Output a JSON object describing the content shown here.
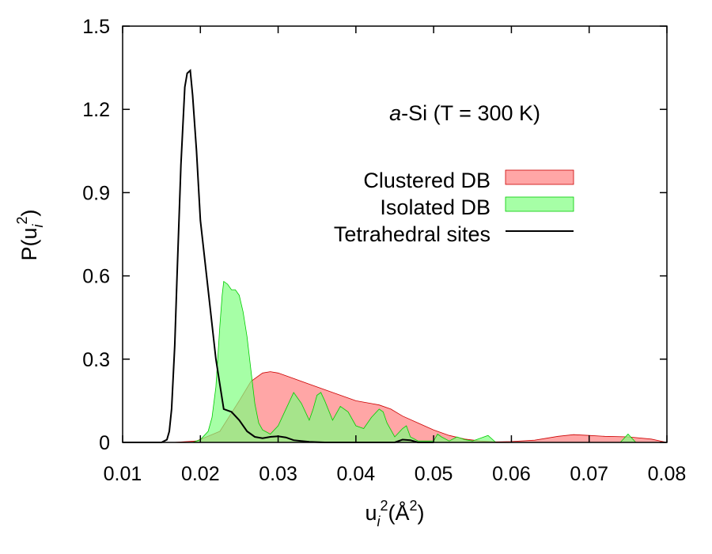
{
  "chart_data": {
    "type": "area",
    "title": "",
    "annotation": {
      "italic": "a",
      "rest": "-Si (T = 300 K)"
    },
    "xlabel": {
      "base": "u",
      "sub": "i",
      "sup": "2",
      "unit_open": "(Å",
      "unit_sup": "2",
      "unit_close": ")"
    },
    "ylabel": {
      "prefix": "P(u",
      "sub": "i",
      "sup": "2",
      "suffix": ")"
    },
    "xlim": [
      0.01,
      0.08
    ],
    "ylim": [
      0,
      1.5
    ],
    "xticks": [
      0.01,
      0.02,
      0.03,
      0.04,
      0.05,
      0.06,
      0.07,
      0.08
    ],
    "xtick_labels": [
      "0.01",
      "0.02",
      "0.03",
      "0.04",
      "0.05",
      "0.06",
      "0.07",
      "0.08"
    ],
    "yticks": [
      0,
      0.3,
      0.6,
      0.9,
      1.2,
      1.5
    ],
    "ytick_labels": [
      "0",
      "0.3",
      "0.6",
      "0.9",
      "1.2",
      "1.5"
    ],
    "legend_position": "top-right",
    "series": [
      {
        "name": "Clustered DB",
        "style": "filled",
        "color": "#ff8080",
        "stroke": "#cc0000",
        "x": [
          0.0165,
          0.0195,
          0.0225,
          0.025,
          0.0265,
          0.028,
          0.029,
          0.03,
          0.032,
          0.034,
          0.036,
          0.038,
          0.04,
          0.042,
          0.043,
          0.0445,
          0.046,
          0.048,
          0.05,
          0.052,
          0.054,
          0.056,
          0.058,
          0.06,
          0.063,
          0.066,
          0.068,
          0.07,
          0.072,
          0.075,
          0.078,
          0.08
        ],
        "values": [
          0,
          0.005,
          0.04,
          0.15,
          0.22,
          0.25,
          0.255,
          0.25,
          0.23,
          0.21,
          0.19,
          0.17,
          0.15,
          0.14,
          0.135,
          0.12,
          0.095,
          0.07,
          0.045,
          0.025,
          0.012,
          0.005,
          0.002,
          0.003,
          0.008,
          0.022,
          0.028,
          0.025,
          0.022,
          0.02,
          0.012,
          0
        ]
      },
      {
        "name": "Isolated DB",
        "style": "filled",
        "color": "#80ff80",
        "stroke": "#00cc00",
        "x": [
          0.019,
          0.02,
          0.021,
          0.0215,
          0.022,
          0.0225,
          0.0228,
          0.023,
          0.0235,
          0.024,
          0.0245,
          0.025,
          0.0255,
          0.026,
          0.0265,
          0.027,
          0.0275,
          0.028,
          0.029,
          0.03,
          0.031,
          0.032,
          0.033,
          0.034,
          0.0345,
          0.035,
          0.0355,
          0.036,
          0.037,
          0.038,
          0.039,
          0.04,
          0.041,
          0.042,
          0.043,
          0.0435,
          0.044,
          0.045,
          0.046,
          0.0465,
          0.047,
          0.048,
          0.05,
          0.0505,
          0.051,
          0.052,
          0.053,
          0.054,
          0.055,
          0.056,
          0.057,
          0.058,
          0.06,
          0.074,
          0.075,
          0.076
        ],
        "values": [
          0,
          0.01,
          0.04,
          0.09,
          0.2,
          0.42,
          0.53,
          0.58,
          0.57,
          0.55,
          0.55,
          0.53,
          0.47,
          0.38,
          0.26,
          0.14,
          0.07,
          0.045,
          0.03,
          0.06,
          0.12,
          0.18,
          0.14,
          0.08,
          0.12,
          0.17,
          0.18,
          0.15,
          0.08,
          0.13,
          0.11,
          0.06,
          0.05,
          0.09,
          0.12,
          0.11,
          0.07,
          0.02,
          0.05,
          0.06,
          0.02,
          0.005,
          0.005,
          0.03,
          0.02,
          0.005,
          0.02,
          0.01,
          0.005,
          0.015,
          0.025,
          0,
          0,
          0,
          0.03,
          0
        ]
      },
      {
        "name": "Tetrahedral sites",
        "style": "line",
        "color": "#000000",
        "x": [
          0.01,
          0.015,
          0.0157,
          0.016,
          0.0163,
          0.0167,
          0.017,
          0.0175,
          0.018,
          0.0183,
          0.0187,
          0.019,
          0.0195,
          0.02,
          0.021,
          0.022,
          0.023,
          0.024,
          0.025,
          0.026,
          0.027,
          0.028,
          0.029,
          0.03,
          0.031,
          0.032,
          0.034,
          0.036,
          0.04,
          0.045,
          0.046,
          0.047,
          0.048,
          0.05
        ],
        "values": [
          0,
          0,
          0.01,
          0.04,
          0.12,
          0.35,
          0.6,
          1.0,
          1.28,
          1.33,
          1.34,
          1.25,
          1.05,
          0.8,
          0.55,
          0.3,
          0.12,
          0.11,
          0.08,
          0.04,
          0.02,
          0.015,
          0.02,
          0.022,
          0.018,
          0.008,
          0.002,
          0,
          0,
          0,
          0.01,
          0.008,
          0,
          0
        ]
      }
    ]
  }
}
